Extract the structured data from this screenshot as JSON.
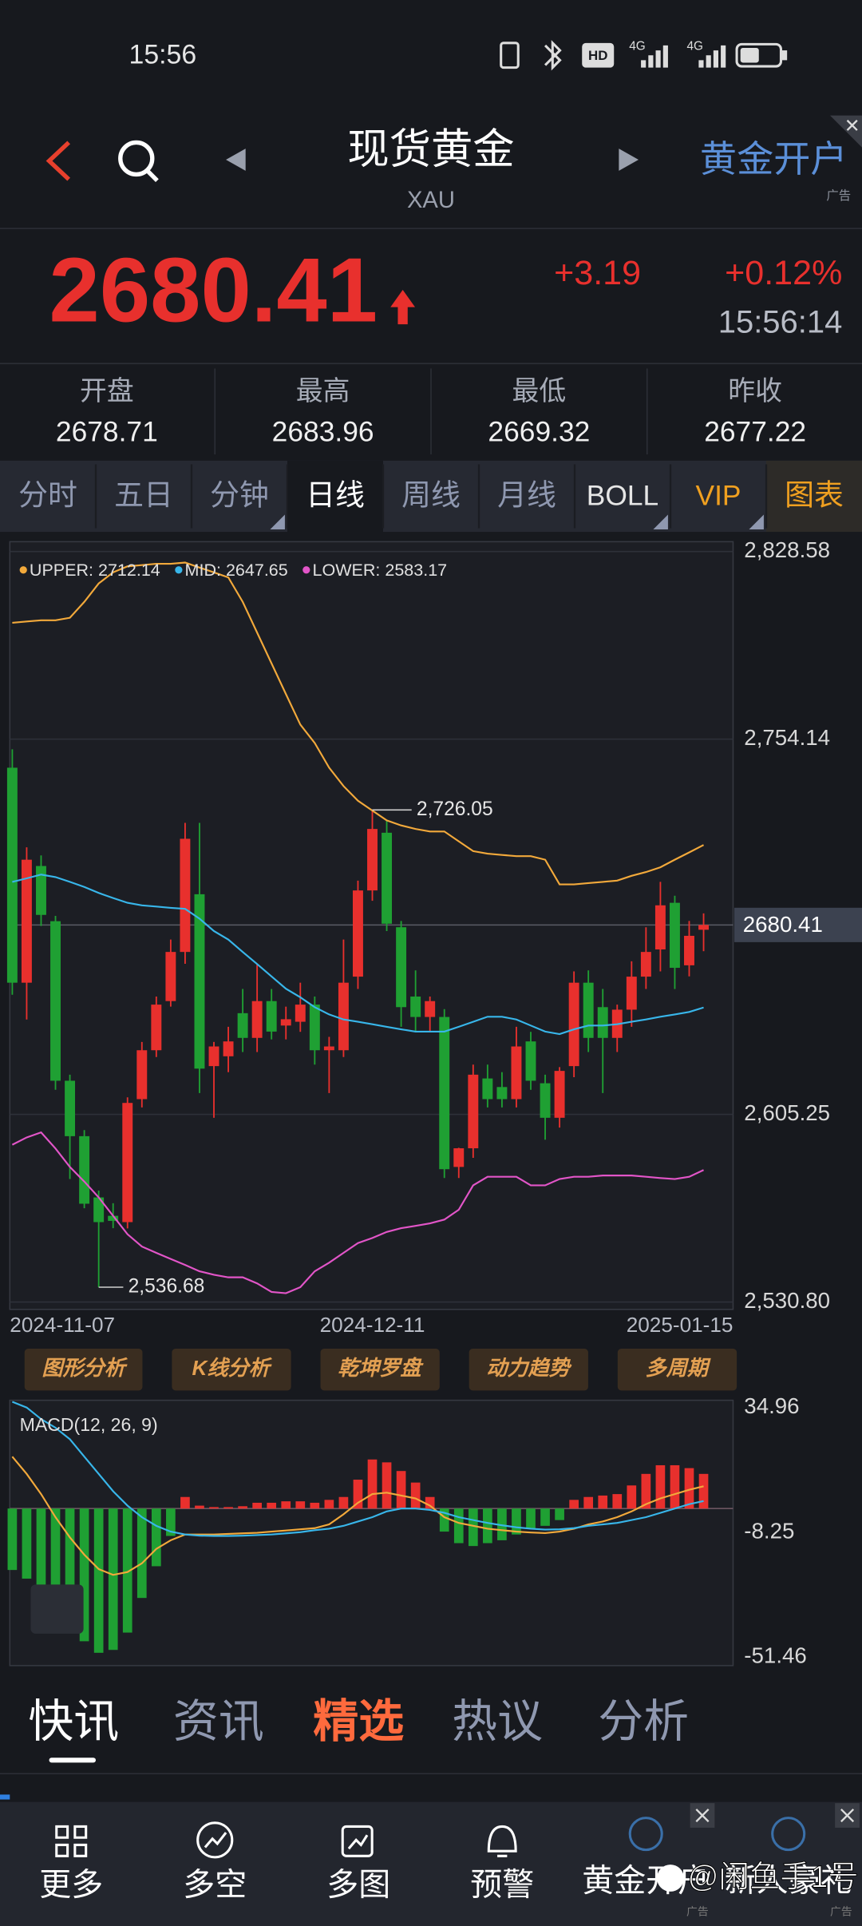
{
  "status_bar": {
    "time": "15:56",
    "hd": "HD",
    "network": [
      "4G",
      "4G"
    ]
  },
  "header": {
    "title": "现货黄金",
    "symbol": "XAU",
    "ad_label": "黄金开户",
    "ad_tag": "广告"
  },
  "quote": {
    "price": "2680.41",
    "change": "+3.19",
    "change_pct": "+0.12%",
    "time": "15:56:14"
  },
  "stats": [
    {
      "label": "开盘",
      "value": "2678.71"
    },
    {
      "label": "最高",
      "value": "2683.96"
    },
    {
      "label": "最低",
      "value": "2669.32"
    },
    {
      "label": "昨收",
      "value": "2677.22"
    }
  ],
  "tabs": [
    "分时",
    "五日",
    "分钟",
    "日线",
    "周线",
    "月线",
    "BOLL",
    "VIP",
    "图表"
  ],
  "chart_data": [
    {
      "type": "candlestick",
      "categories": [
        "2024-11-07",
        null,
        null,
        null,
        null,
        null,
        null,
        null,
        null,
        null,
        null,
        null,
        null,
        null,
        null,
        null,
        null,
        null,
        null,
        null,
        null,
        null,
        null,
        null,
        null,
        "2024-12-11",
        null,
        null,
        null,
        null,
        null,
        null,
        null,
        null,
        null,
        null,
        null,
        null,
        null,
        null,
        null,
        null,
        null,
        null,
        null,
        null,
        null,
        null,
        "2025-01-15"
      ],
      "candles": [
        [
          2742.8,
          2750.1,
          2652.7,
          2657.5
        ],
        [
          2657.5,
          2711.2,
          2642.9,
          2706.3
        ],
        [
          2703.8,
          2708,
          2680,
          2684.4
        ],
        [
          2681.9,
          2684,
          2615,
          2618.6
        ],
        [
          2618.6,
          2621,
          2579.6,
          2596.6
        ],
        [
          2596.6,
          2599,
          2568,
          2569.8
        ],
        [
          2572.3,
          2575,
          2536.68,
          2562.5
        ],
        [
          2565,
          2570,
          2560.1,
          2563
        ],
        [
          2562.5,
          2612,
          2560,
          2609.8
        ],
        [
          2611.3,
          2634,
          2608,
          2630.7
        ],
        [
          2630.7,
          2652,
          2628,
          2648.8
        ],
        [
          2650.2,
          2674.6,
          2648,
          2669.7
        ],
        [
          2669.7,
          2720.9,
          2665,
          2714.6
        ],
        [
          2692.6,
          2720.9,
          2613.7,
          2623.4
        ],
        [
          2624.4,
          2634,
          2603.9,
          2632.2
        ],
        [
          2628.3,
          2640,
          2622,
          2634.2
        ],
        [
          2645.4,
          2655,
          2630,
          2635.6
        ],
        [
          2635.6,
          2664.9,
          2630,
          2650.2
        ],
        [
          2650.2,
          2655,
          2635,
          2638.1
        ],
        [
          2640.5,
          2648,
          2635,
          2643
        ],
        [
          2642,
          2657.5,
          2638,
          2648.8
        ],
        [
          2648.8,
          2652,
          2625,
          2630.7
        ],
        [
          2630.7,
          2636,
          2613.7,
          2632.2
        ],
        [
          2630.7,
          2674.6,
          2628,
          2657.5
        ],
        [
          2659.9,
          2698,
          2655,
          2694.1
        ],
        [
          2694.1,
          2726.05,
          2690,
          2718.5
        ],
        [
          2717,
          2722,
          2678,
          2680.9
        ],
        [
          2679.5,
          2682,
          2640,
          2647.8
        ],
        [
          2652,
          2662.4,
          2638,
          2643.9
        ],
        [
          2643.9,
          2652,
          2638,
          2650.2
        ],
        [
          2643.9,
          2647,
          2580,
          2583.5
        ],
        [
          2584.4,
          2592,
          2580,
          2591.8
        ],
        [
          2591.8,
          2625,
          2588,
          2621
        ],
        [
          2619.5,
          2625,
          2608,
          2611.3
        ],
        [
          2616.1,
          2622,
          2608,
          2611.3
        ],
        [
          2611.3,
          2640,
          2608,
          2632.2
        ],
        [
          2634.2,
          2638,
          2615,
          2618.6
        ],
        [
          2617.6,
          2621,
          2595.2,
          2603.9
        ],
        [
          2603.9,
          2624,
          2600,
          2622.5
        ],
        [
          2624.4,
          2662,
          2620,
          2657.5
        ],
        [
          2657.5,
          2662.4,
          2630,
          2635.6
        ],
        [
          2647.8,
          2655,
          2613.7,
          2635.6
        ],
        [
          2635.6,
          2648.8,
          2630,
          2646.8
        ],
        [
          2646.8,
          2666,
          2640,
          2659.9
        ],
        [
          2659.9,
          2679.5,
          2655,
          2669.7
        ],
        [
          2670.7,
          2697.5,
          2662,
          2688.2
        ],
        [
          2689.2,
          2692,
          2655,
          2663.4
        ],
        [
          2664.4,
          2682,
          2660,
          2676.1
        ],
        [
          2678.5,
          2685,
          2670,
          2680.41
        ]
      ],
      "up_color": "#e8302d",
      "down_color": "#1fa033",
      "series": [
        {
          "name": "UPPER: 2712.14",
          "color": "#f2a93b",
          "values": [
            2800.3,
            2800.8,
            2801.3,
            2801.3,
            2802.3,
            2808.6,
            2815.9,
            2820.3,
            2822.7,
            2823.2,
            2823.7,
            2823.7,
            2824.2,
            2822.2,
            2820.3,
            2818.3,
            2808.6,
            2796.4,
            2784.2,
            2772.0,
            2759.9,
            2752.6,
            2742.8,
            2735.5,
            2729.7,
            2725.8,
            2721.9,
            2719.9,
            2718.5,
            2717.5,
            2717.5,
            2713.6,
            2709.7,
            2708.7,
            2708.2,
            2707.7,
            2707.7,
            2706.3,
            2696.5,
            2696.5,
            2697.0,
            2697.5,
            2698.0,
            2699.9,
            2701.4,
            2703.3,
            2706.3,
            2709.2,
            2712.14
          ]
        },
        {
          "name": "MID: 2647.65",
          "color": "#38b6ea",
          "values": [
            2697.5,
            2698.9,
            2700.4,
            2699.4,
            2697.5,
            2695.5,
            2693.1,
            2691.1,
            2689.2,
            2688.2,
            2687.7,
            2687.2,
            2686.8,
            2682.9,
            2678.0,
            2674.6,
            2669.7,
            2664.9,
            2660.0,
            2655.1,
            2651.7,
            2647.8,
            2644.9,
            2642.9,
            2642.0,
            2641.0,
            2640.0,
            2639.0,
            2638.1,
            2638.1,
            2638.1,
            2640.0,
            2642.0,
            2644.0,
            2644.0,
            2642.9,
            2640.5,
            2638.1,
            2637.1,
            2639.0,
            2640.5,
            2640.5,
            2641.0,
            2642.0,
            2642.9,
            2644.0,
            2644.9,
            2645.9,
            2647.65
          ]
        },
        {
          "name": "LOWER: 2583.17",
          "color": "#e255c8",
          "values": [
            2593.2,
            2596.1,
            2598.1,
            2591.7,
            2584.4,
            2578.6,
            2572.3,
            2565.0,
            2557.7,
            2552.8,
            2550.3,
            2547.9,
            2545.5,
            2543.0,
            2541.6,
            2540.6,
            2540.6,
            2538.2,
            2534.8,
            2534.3,
            2536.7,
            2543.0,
            2546.4,
            2550.3,
            2554.2,
            2556.2,
            2558.6,
            2560.1,
            2561.0,
            2562.0,
            2563.5,
            2567.4,
            2577.1,
            2580.5,
            2580.5,
            2580.5,
            2577.1,
            2577.1,
            2579.6,
            2580.5,
            2580.5,
            2581.0,
            2581.0,
            2581.0,
            2580.5,
            2580.0,
            2579.6,
            2580.5,
            2583.17
          ]
        }
      ],
      "ylim": [
        2530.8,
        2828.58
      ],
      "yticks": [
        {
          "value": 2828.58,
          "label": "2,828.58"
        },
        {
          "value": 2754.14,
          "label": "2,754.14"
        },
        {
          "value": 2605.25,
          "label": "2,605.25"
        },
        {
          "value": 2530.8,
          "label": "2,530.80"
        }
      ],
      "current": 2680.41,
      "annotations": [
        {
          "value": 2726.05,
          "label": "2,726.05"
        },
        {
          "value": 2536.68,
          "label": "2,536.68"
        }
      ],
      "grid": true
    },
    {
      "type": "macd",
      "title": "MACD(12, 26, 9)",
      "up_color": "#e8302d",
      "down_color": "#1fa033",
      "histogram": [
        -21.3,
        -24.3,
        -28,
        -33,
        -40,
        -46,
        -50,
        -49,
        -43,
        -31,
        -20,
        -9.5,
        4,
        1,
        0.5,
        0.5,
        0.8,
        2,
        2,
        2.5,
        2.5,
        2,
        3,
        4,
        10,
        17,
        16,
        13,
        9,
        4,
        -8,
        -12,
        -13,
        -12,
        -11,
        -9,
        -7,
        -6,
        -4,
        3,
        4,
        4.5,
        5,
        8,
        12,
        15,
        15,
        14,
        12
      ],
      "lines": [
        {
          "color": "#f2a93b",
          "values": [
            18,
            12,
            5,
            -3,
            -10,
            -16,
            -21,
            -23,
            -22,
            -19,
            -14,
            -11,
            -9,
            -9,
            -9,
            -8.8,
            -8.6,
            -8.4,
            -8,
            -7.6,
            -7.2,
            -6.8,
            -5.5,
            -2,
            2,
            5,
            5.5,
            4.5,
            3.5,
            1,
            -3,
            -5,
            -6,
            -7,
            -7.5,
            -8,
            -8.3,
            -8.5,
            -8,
            -7,
            -5.5,
            -4.5,
            -3,
            -1,
            1.5,
            3.5,
            5,
            6.5,
            7.7
          ]
        },
        {
          "color": "#38b6ea",
          "values": [
            37,
            35,
            31,
            28,
            24,
            18,
            12,
            6,
            1,
            -3,
            -6,
            -8,
            -9,
            -9.4,
            -9.5,
            -9.5,
            -9.4,
            -9.2,
            -9,
            -8.6,
            -8.2,
            -7.5,
            -7,
            -6,
            -4.5,
            -3,
            -1,
            0,
            0,
            -0.5,
            -1.5,
            -3,
            -4,
            -5,
            -5.8,
            -6.5,
            -7,
            -7.3,
            -7.2,
            -6.8,
            -6,
            -5.5,
            -5,
            -4,
            -3,
            -1.5,
            0,
            1.5,
            2.6
          ]
        }
      ],
      "ylim": [
        -51.46,
        34.96
      ],
      "yticks": [
        34.96,
        -8.25,
        -51.46
      ]
    }
  ],
  "tools": [
    "图形分析",
    "K线分析",
    "乾坤罗盘",
    "动力趋势",
    "多周期"
  ],
  "news_tabs": [
    "快讯",
    "资讯",
    "精选",
    "热议",
    "分析"
  ],
  "nav": [
    {
      "label": "更多"
    },
    {
      "label": "多空"
    },
    {
      "label": "多图"
    },
    {
      "label": "预警"
    },
    {
      "label": "黄金开户",
      "tag": "广告"
    },
    {
      "label": "新人豪礼",
      "tag": "广告"
    }
  ],
  "watermark": "@闲鱼手1号"
}
